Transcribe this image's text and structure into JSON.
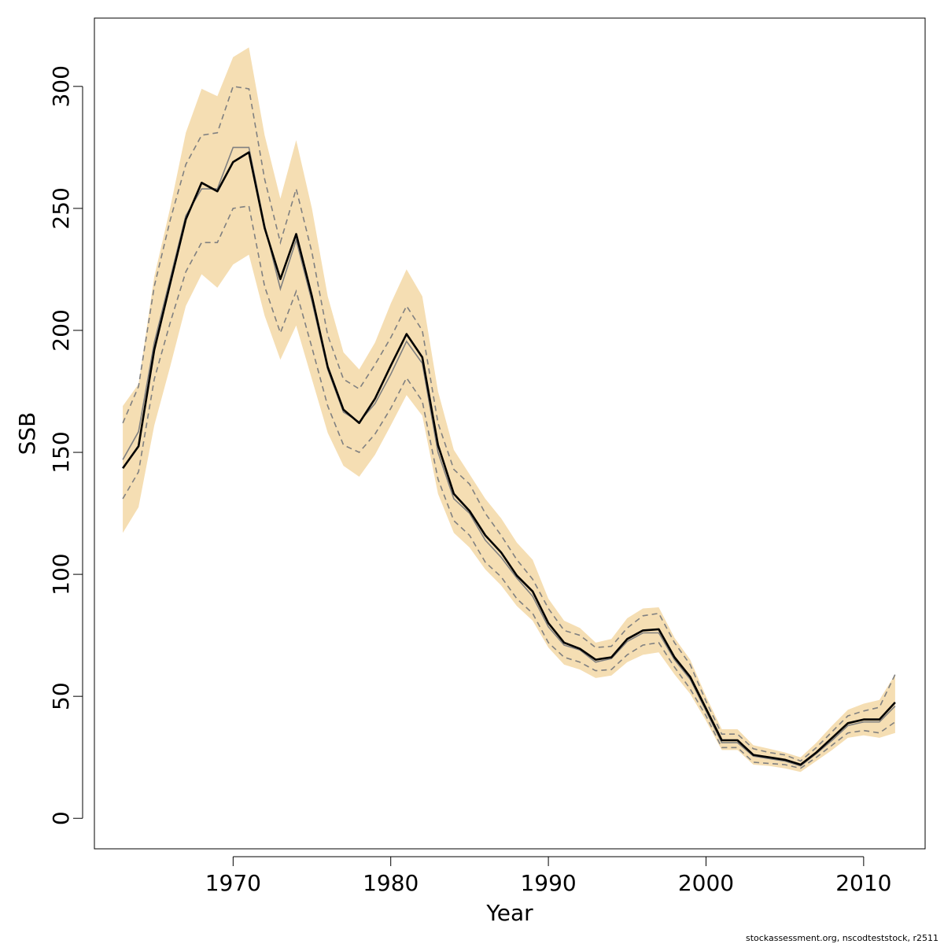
{
  "chart_data": {
    "type": "line",
    "xlabel": "Year",
    "ylabel": "SSB",
    "xlim": [
      1961.2,
      2013.9
    ],
    "ylim": [
      -12.5,
      328
    ],
    "x_ticks": [
      1970,
      1980,
      1990,
      2000,
      2010
    ],
    "x_tick_labels": [
      "1970",
      "1980",
      "1990",
      "2000",
      "2010"
    ],
    "y_ticks": [
      0,
      50,
      100,
      150,
      200,
      250,
      300
    ],
    "y_tick_labels": [
      "0",
      "50",
      "100",
      "150",
      "200",
      "250",
      "300"
    ],
    "grid": false,
    "colors": {
      "band": "#f5deb3",
      "estimate": "#000000",
      "alt_estimate": "#808080",
      "alt_ci": "#808080"
    },
    "years": [
      1963,
      1964,
      1965,
      1966,
      1967,
      1968,
      1969,
      1970,
      1971,
      1972,
      1973,
      1974,
      1975,
      1976,
      1977,
      1978,
      1979,
      1980,
      1981,
      1982,
      1983,
      1984,
      1985,
      1986,
      1987,
      1988,
      1989,
      1990,
      1991,
      1992,
      1993,
      1994,
      1995,
      1996,
      1997,
      1998,
      1999,
      2000,
      2001,
      2002,
      2003,
      2004,
      2005,
      2006,
      2007,
      2008,
      2009,
      2010,
      2011,
      2012
    ],
    "series": [
      {
        "role": "estimate",
        "values": [
          143.5,
          152.5,
          192,
          219,
          245.5,
          260.5,
          257,
          269,
          273,
          242,
          221,
          239.5,
          214,
          185,
          167.5,
          162,
          172,
          185.5,
          198.5,
          189,
          153,
          133,
          126,
          116,
          109,
          99.5,
          93,
          80,
          72,
          69.5,
          65,
          66,
          73.5,
          77,
          77.5,
          66,
          58,
          45,
          32,
          32,
          26,
          25,
          24,
          22,
          27,
          33,
          39,
          40.5,
          40.5,
          47.5
        ]
      },
      {
        "role": "alt_estimate",
        "values": [
          147,
          158.5,
          195,
          221,
          247,
          258,
          258,
          275,
          275,
          243,
          217,
          237,
          212,
          184,
          166.5,
          162.5,
          170,
          182,
          195.5,
          186.5,
          150,
          131,
          125,
          114,
          107,
          98.5,
          91,
          78.5,
          71,
          69,
          64,
          65.5,
          72.5,
          76,
          76,
          65,
          57,
          44,
          31,
          31,
          25.5,
          24.5,
          23.5,
          21.5,
          26.5,
          32,
          38,
          39.5,
          39.5,
          46
        ]
      },
      {
        "role": "upper_band",
        "values": [
          169,
          178,
          222,
          250,
          281,
          299,
          296,
          312,
          316,
          280,
          254,
          278,
          250,
          214,
          191,
          184,
          195,
          211,
          225,
          214,
          175,
          151,
          141,
          131,
          123,
          113,
          106,
          90,
          81,
          78,
          72,
          73.5,
          82,
          86,
          86.5,
          74,
          65,
          50,
          36.5,
          36.5,
          30,
          28.5,
          27,
          25,
          31,
          38,
          44.5,
          47,
          48.5,
          59
        ]
      },
      {
        "role": "lower_band",
        "values": [
          117,
          127.5,
          161,
          185,
          210,
          223,
          217.5,
          227,
          231,
          206,
          188,
          202,
          180,
          158,
          144.5,
          140,
          149,
          161,
          173.5,
          165,
          133,
          117,
          111,
          102,
          95.5,
          87,
          81,
          70,
          63,
          61,
          57.5,
          58.5,
          64,
          67,
          68,
          59,
          51,
          40,
          28,
          28,
          22,
          21.5,
          20.5,
          19,
          23.5,
          28,
          33,
          34,
          33,
          35
        ]
      },
      {
        "role": "alt_upper_ci",
        "values": [
          162,
          177,
          218,
          245,
          268,
          280,
          281,
          300,
          299,
          262,
          236,
          258,
          232,
          198,
          180,
          176,
          186,
          197,
          210,
          200,
          162,
          143,
          137,
          125,
          116,
          106,
          98,
          86,
          77,
          75,
          70,
          70.5,
          78,
          83,
          84,
          72,
          63,
          48,
          34.5,
          34.5,
          28.5,
          27,
          26,
          23.5,
          29,
          35.5,
          42,
          44,
          45.5,
          59
        ]
      },
      {
        "role": "alt_lower_ci",
        "values": [
          131,
          142,
          180,
          203,
          224,
          236,
          236,
          250,
          251,
          218,
          199,
          216,
          193,
          169,
          153,
          150,
          157.5,
          168,
          180.5,
          171,
          139,
          122,
          116,
          105,
          99,
          90,
          84,
          72,
          66,
          64,
          60.5,
          61,
          67,
          71,
          72,
          62,
          53,
          42,
          29,
          29,
          23,
          22.5,
          22,
          20.5,
          25,
          30,
          35,
          36,
          35,
          39.5
        ]
      }
    ]
  },
  "footnote": "stockassessment.org, nscodteststock, r2511"
}
